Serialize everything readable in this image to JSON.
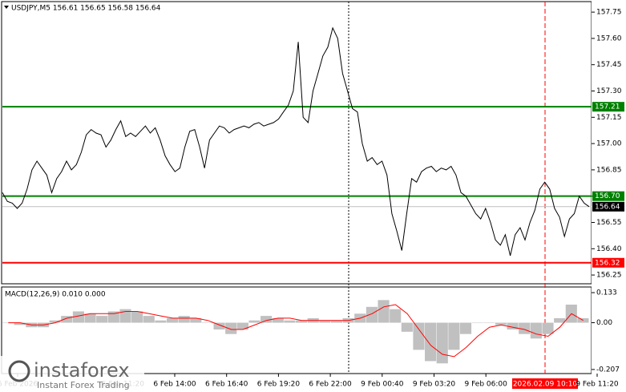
{
  "chart_data": [
    {
      "type": "line",
      "title": "USDJPY,M5  156.61 156.65 156.58 156.64",
      "color": "#000000",
      "values": [
        156.72,
        156.67,
        156.66,
        156.63,
        156.66,
        156.74,
        156.85,
        156.9,
        156.86,
        156.82,
        156.72,
        156.8,
        156.84,
        156.9,
        156.85,
        156.88,
        156.95,
        157.05,
        157.08,
        157.06,
        157.05,
        156.98,
        157.02,
        157.08,
        157.13,
        157.04,
        157.06,
        157.04,
        157.07,
        157.1,
        157.06,
        157.09,
        157.02,
        156.93,
        156.88,
        156.84,
        156.86,
        156.98,
        157.07,
        157.08,
        156.98,
        156.86,
        157.02,
        157.06,
        157.1,
        157.09,
        157.06,
        157.08,
        157.09,
        157.1,
        157.09,
        157.11,
        157.12,
        157.1,
        157.11,
        157.12,
        157.14,
        157.18,
        157.22,
        157.3,
        157.58,
        157.15,
        157.12,
        157.3,
        157.4,
        157.5,
        157.55,
        157.66,
        157.6,
        157.4,
        157.3,
        157.2,
        157.18,
        157.0,
        156.9,
        156.92,
        156.88,
        156.9,
        156.82,
        156.6,
        156.5,
        156.39,
        156.6,
        156.8,
        156.78,
        156.84,
        156.86,
        156.87,
        156.84,
        156.86,
        156.85,
        156.87,
        156.82,
        156.72,
        156.7,
        156.65,
        156.6,
        156.57,
        156.63,
        156.55,
        156.45,
        156.42,
        156.48,
        156.36,
        156.48,
        156.52,
        156.45,
        156.55,
        156.62,
        156.74,
        156.78,
        156.74,
        156.63,
        156.58,
        156.47,
        156.57,
        156.6,
        156.7,
        156.66,
        156.64
      ],
      "ylim": [
        156.2,
        157.81
      ],
      "yticks": [
        157.75,
        {
          "value": 157.6,
          "label": "157.60"
        },
        157.45,
        {
          "value": 157.3,
          "label": "157.30"
        },
        157.15,
        {
          "value": 157,
          "label": "157.00"
        },
        156.85,
        {
          "value": 156.7,
          "label": "156.70"
        },
        156.55,
        {
          "value": 156.4,
          "label": "156.40"
        },
        156.25
      ],
      "levels": [
        {
          "value": 157.21,
          "color": "#008000"
        },
        {
          "value": 156.7,
          "label": "156.70",
          "color": "#008000"
        },
        {
          "value": 156.32,
          "color": "#ff0000"
        }
      ],
      "last_price": {
        "value": 156.64,
        "color": "#c0c0c0"
      },
      "x_labels": [
        "6 Feb 2026",
        "6 Feb 11:20",
        "6 Feb 14:00",
        "6 Feb 16:40",
        "6 Feb 19:20",
        "6 Feb 22:00",
        "9 Feb 00:40",
        "9 Feb 03:20",
        "9 Feb 06:00",
        "2026.02.09 10:10",
        "9 Feb 11:20"
      ]
    },
    {
      "type": "macd",
      "title": "MACD(12,26,9) 0.010 0.000",
      "histogram": {
        "color": "#c0c0c0",
        "values": [
          0.0,
          -0.01,
          -0.02,
          -0.02,
          0.01,
          0.03,
          0.05,
          0.04,
          0.03,
          0.05,
          0.06,
          0.05,
          0.03,
          0.01,
          0.02,
          0.03,
          0.02,
          0.0,
          -0.03,
          -0.05,
          -0.03,
          0.01,
          0.03,
          0.02,
          0.01,
          0.01,
          0.02,
          0.01,
          0.01,
          0.02,
          0.04,
          0.07,
          0.1,
          0.06,
          -0.04,
          -0.12,
          -0.17,
          -0.18,
          -0.12,
          -0.05,
          0.0,
          0.0,
          -0.01,
          -0.03,
          -0.05,
          -0.07,
          -0.05,
          0.02,
          0.08,
          0.02
        ]
      },
      "signal": {
        "color": "#ff0000",
        "values": [
          0.0,
          0.0,
          -0.01,
          -0.01,
          0.0,
          0.02,
          0.03,
          0.04,
          0.04,
          0.04,
          0.05,
          0.05,
          0.04,
          0.03,
          0.02,
          0.02,
          0.02,
          0.01,
          -0.01,
          -0.03,
          -0.03,
          -0.01,
          0.01,
          0.02,
          0.02,
          0.01,
          0.01,
          0.01,
          0.01,
          0.01,
          0.02,
          0.04,
          0.07,
          0.08,
          0.04,
          -0.03,
          -0.1,
          -0.14,
          -0.15,
          -0.11,
          -0.06,
          -0.02,
          -0.01,
          -0.02,
          -0.03,
          -0.05,
          -0.06,
          -0.02,
          0.04,
          0.01
        ]
      },
      "ylim": [
        -0.225,
        0.158
      ],
      "yticks": [
        0.133,
        {
          "value": 0,
          "label": "0.00"
        },
        -0.207
      ]
    }
  ],
  "watermark": {
    "brand": "instaforex",
    "tagline": "Instant Forex Trading"
  }
}
